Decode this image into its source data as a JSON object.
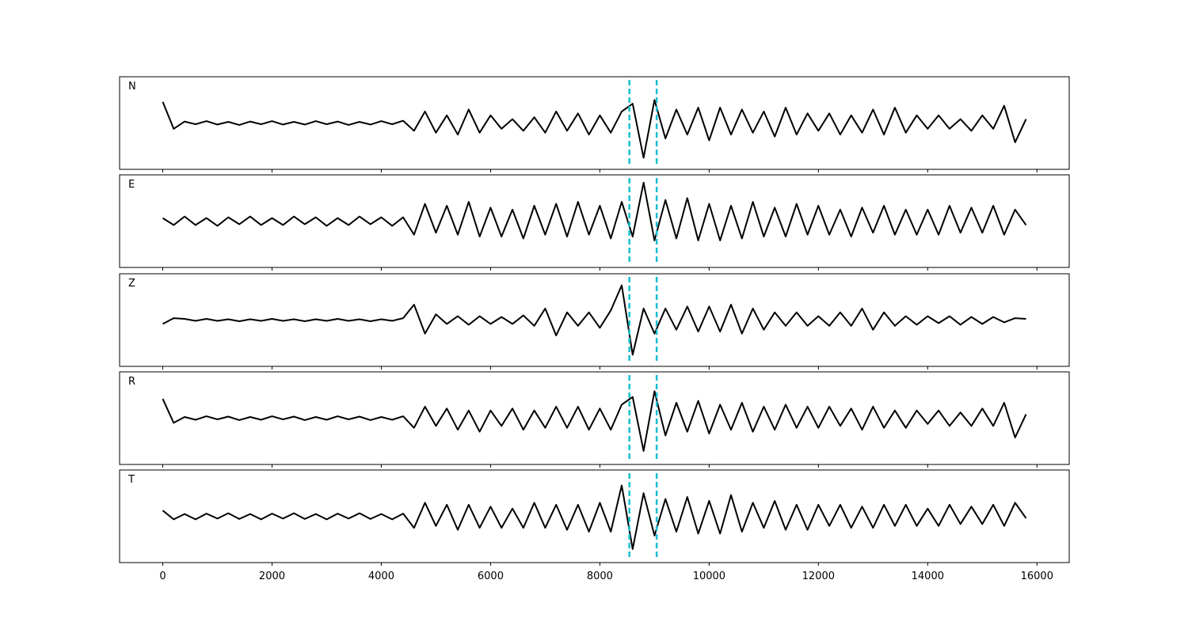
{
  "chart_data": {
    "type": "line",
    "x": [
      0,
      200,
      400,
      600,
      800,
      1000,
      1200,
      1400,
      1600,
      1800,
      2000,
      2200,
      2400,
      2600,
      2800,
      3000,
      3200,
      3400,
      3600,
      3800,
      4000,
      4200,
      4400,
      4600,
      4800,
      5000,
      5200,
      5400,
      5600,
      5800,
      6000,
      6200,
      6400,
      6600,
      6800,
      7000,
      7200,
      7400,
      7600,
      7800,
      8000,
      8200,
      8400,
      8600,
      8800,
      9000,
      9200,
      9400,
      9600,
      9800,
      10000,
      10200,
      10400,
      10600,
      10800,
      11000,
      11200,
      11400,
      11600,
      11800,
      12000,
      12200,
      12400,
      12600,
      12800,
      13000,
      13200,
      13400,
      13600,
      13800,
      14000,
      14200,
      14400,
      14600,
      14800,
      15000,
      15200,
      15400,
      15600,
      15800
    ],
    "xlim": [
      -790,
      16590
    ],
    "xticks": [
      0,
      2000,
      4000,
      6000,
      8000,
      10000,
      12000,
      14000,
      16000
    ],
    "ylim": [
      -1.2,
      1.2
    ],
    "grid": false,
    "vlines": [
      8540,
      9040
    ],
    "vline_color": "#17becf",
    "series": [
      {
        "name": "N",
        "color": "#000000",
        "values": [
          0.55,
          -0.15,
          0.04,
          -0.03,
          0.05,
          -0.04,
          0.03,
          -0.05,
          0.04,
          -0.03,
          0.05,
          -0.04,
          0.03,
          -0.04,
          0.05,
          -0.03,
          0.04,
          -0.05,
          0.03,
          -0.04,
          0.05,
          -0.03,
          0.06,
          -0.2,
          0.3,
          -0.25,
          0.2,
          -0.3,
          0.35,
          -0.25,
          0.2,
          -0.15,
          0.1,
          -0.2,
          0.15,
          -0.25,
          0.3,
          -0.2,
          0.25,
          -0.3,
          0.2,
          -0.25,
          0.3,
          0.5,
          -0.9,
          0.6,
          -0.4,
          0.35,
          -0.3,
          0.4,
          -0.45,
          0.4,
          -0.3,
          0.35,
          -0.25,
          0.3,
          -0.35,
          0.4,
          -0.3,
          0.25,
          -0.2,
          0.25,
          -0.3,
          0.2,
          -0.25,
          0.35,
          -0.3,
          0.4,
          -0.25,
          0.2,
          -0.15,
          0.2,
          -0.15,
          0.1,
          -0.2,
          0.2,
          -0.15,
          0.45,
          -0.5,
          0.1
        ]
      },
      {
        "name": "E",
        "color": "#000000",
        "values": [
          0.08,
          -0.1,
          0.12,
          -0.1,
          0.08,
          -0.12,
          0.1,
          -0.08,
          0.12,
          -0.1,
          0.08,
          -0.1,
          0.12,
          -0.08,
          0.1,
          -0.12,
          0.08,
          -0.1,
          0.12,
          -0.08,
          0.1,
          -0.12,
          0.1,
          -0.35,
          0.45,
          -0.3,
          0.4,
          -0.35,
          0.5,
          -0.4,
          0.35,
          -0.4,
          0.3,
          -0.45,
          0.4,
          -0.35,
          0.45,
          -0.4,
          0.5,
          -0.35,
          0.4,
          -0.45,
          0.5,
          -0.4,
          1.0,
          -0.5,
          0.55,
          -0.45,
          0.6,
          -0.5,
          0.45,
          -0.5,
          0.4,
          -0.45,
          0.5,
          -0.4,
          0.35,
          -0.4,
          0.45,
          -0.35,
          0.4,
          -0.35,
          0.3,
          -0.4,
          0.35,
          -0.3,
          0.4,
          -0.35,
          0.3,
          -0.35,
          0.3,
          -0.35,
          0.4,
          -0.3,
          0.35,
          -0.3,
          0.4,
          -0.35,
          0.3,
          -0.1
        ]
      },
      {
        "name": "Z",
        "color": "#000000",
        "values": [
          -0.1,
          0.05,
          0.03,
          -0.02,
          0.03,
          -0.02,
          0.02,
          -0.03,
          0.02,
          -0.02,
          0.03,
          -0.02,
          0.02,
          -0.03,
          0.02,
          -0.02,
          0.03,
          -0.02,
          0.02,
          -0.03,
          0.02,
          -0.02,
          0.05,
          0.4,
          -0.35,
          0.15,
          -0.1,
          0.1,
          -0.12,
          0.1,
          -0.1,
          0.08,
          -0.1,
          0.12,
          -0.15,
          0.3,
          -0.4,
          0.2,
          -0.15,
          0.2,
          -0.2,
          0.25,
          0.9,
          -0.9,
          0.3,
          -0.35,
          0.3,
          -0.25,
          0.35,
          -0.3,
          0.35,
          -0.3,
          0.4,
          -0.35,
          0.3,
          -0.25,
          0.2,
          -0.15,
          0.2,
          -0.15,
          0.1,
          -0.15,
          0.2,
          -0.15,
          0.3,
          -0.25,
          0.2,
          -0.15,
          0.1,
          -0.12,
          0.1,
          -0.08,
          0.1,
          -0.12,
          0.08,
          -0.1,
          0.08,
          -0.06,
          0.05,
          0.03
        ]
      },
      {
        "name": "R",
        "color": "#000000",
        "values": [
          0.5,
          -0.12,
          0.03,
          -0.04,
          0.05,
          -0.03,
          0.04,
          -0.05,
          0.03,
          -0.04,
          0.05,
          -0.03,
          0.04,
          -0.05,
          0.03,
          -0.04,
          0.05,
          -0.03,
          0.04,
          -0.05,
          0.03,
          -0.04,
          0.05,
          -0.25,
          0.3,
          -0.2,
          0.25,
          -0.3,
          0.2,
          -0.35,
          0.2,
          -0.2,
          0.25,
          -0.3,
          0.2,
          -0.25,
          0.3,
          -0.25,
          0.3,
          -0.3,
          0.25,
          -0.3,
          0.35,
          0.55,
          -0.85,
          0.7,
          -0.45,
          0.4,
          -0.35,
          0.45,
          -0.4,
          0.35,
          -0.3,
          0.4,
          -0.35,
          0.3,
          -0.3,
          0.35,
          -0.25,
          0.3,
          -0.25,
          0.3,
          -0.2,
          0.25,
          -0.3,
          0.3,
          -0.25,
          0.2,
          -0.25,
          0.2,
          -0.15,
          0.2,
          -0.2,
          0.15,
          -0.2,
          0.25,
          -0.2,
          0.4,
          -0.5,
          0.1
        ]
      },
      {
        "name": "T",
        "color": "#000000",
        "values": [
          0.15,
          -0.08,
          0.06,
          -0.08,
          0.07,
          -0.06,
          0.08,
          -0.07,
          0.06,
          -0.08,
          0.07,
          -0.06,
          0.08,
          -0.07,
          0.06,
          -0.08,
          0.07,
          -0.06,
          0.08,
          -0.07,
          0.06,
          -0.08,
          0.07,
          -0.3,
          0.35,
          -0.25,
          0.3,
          -0.35,
          0.3,
          -0.3,
          0.25,
          -0.3,
          0.2,
          -0.3,
          0.35,
          -0.3,
          0.3,
          -0.35,
          0.3,
          -0.4,
          0.35,
          -0.4,
          0.8,
          -0.85,
          0.6,
          -0.5,
          0.45,
          -0.4,
          0.5,
          -0.45,
          0.4,
          -0.45,
          0.55,
          -0.4,
          0.35,
          -0.3,
          0.4,
          -0.35,
          0.3,
          -0.35,
          0.3,
          -0.25,
          0.3,
          -0.3,
          0.25,
          -0.3,
          0.3,
          -0.25,
          0.3,
          -0.25,
          0.2,
          -0.25,
          0.3,
          -0.2,
          0.25,
          -0.2,
          0.3,
          -0.25,
          0.35,
          -0.05
        ]
      }
    ]
  }
}
